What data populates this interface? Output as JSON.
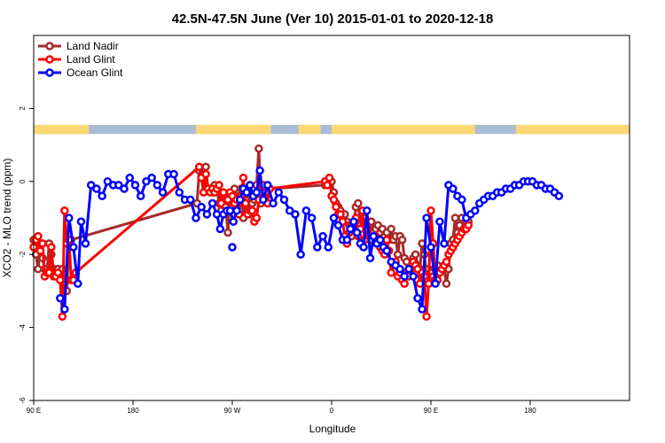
{
  "chart_data": {
    "type": "line",
    "title": "42.5N-47.5N June (Ver 10)   2015-01-01 to 2020-12-18",
    "xlabel": "Longitude",
    "ylabel": "XCO2 - MLO trend (ppm)",
    "xlim": [
      90,
      630
    ],
    "ylim": [
      -6,
      4
    ],
    "x_ticks": [
      {
        "value": 90,
        "label": "90 E"
      },
      {
        "value": 180,
        "label": "180"
      },
      {
        "value": 270,
        "label": "90 W"
      },
      {
        "value": 360,
        "label": "0"
      },
      {
        "value": 450,
        "label": "90 E"
      },
      {
        "value": 540,
        "label": "180"
      }
    ],
    "y_ticks": [
      {
        "value": -6,
        "label": "-6"
      },
      {
        "value": -4,
        "label": "-4"
      },
      {
        "value": -2,
        "label": "-2"
      },
      {
        "value": 0,
        "label": "0"
      },
      {
        "value": 2,
        "label": "2"
      }
    ],
    "grid": false,
    "legend_position": "top-left",
    "land_mask_strip": {
      "y_range": [
        1.3,
        1.55
      ],
      "land_color": "#fbd874",
      "ocean_color": "#a9bcd6",
      "land_ranges": [
        [
          90,
          140
        ],
        [
          237,
          305
        ],
        [
          330,
          350
        ],
        [
          360,
          490
        ],
        [
          527,
          540
        ],
        [
          540,
          630
        ]
      ]
    },
    "series": [
      {
        "name": "Land Nadir",
        "color": "#a52a2a",
        "x": [
          90,
          92,
          94,
          96,
          98,
          100,
          102,
          104,
          106,
          108,
          110,
          112,
          114,
          116,
          118,
          120,
          122,
          124,
          238,
          240,
          242,
          244,
          246,
          248,
          250,
          252,
          254,
          256,
          258,
          260,
          262,
          264,
          266,
          268,
          270,
          272,
          274,
          276,
          278,
          280,
          282,
          284,
          286,
          288,
          290,
          292,
          294,
          296,
          298,
          300,
          302,
          304,
          354,
          356,
          358,
          360,
          362,
          364,
          366,
          368,
          370,
          372,
          374,
          376,
          378,
          380,
          382,
          384,
          386,
          388,
          390,
          392,
          394,
          396,
          398,
          400,
          402,
          404,
          406,
          408,
          410,
          412,
          414,
          416,
          418,
          420,
          422,
          424,
          426,
          428,
          430,
          432,
          434,
          436,
          438,
          440,
          442,
          444,
          446,
          448,
          450,
          452,
          454,
          456,
          458,
          460,
          462,
          464,
          466,
          468,
          470,
          472,
          474,
          476,
          478,
          480,
          482,
          484
        ],
        "values": [
          -1.6,
          -2.0,
          -2.4,
          -1.7,
          -2.1,
          -2.4,
          -2.5,
          -1.7,
          -2.0,
          -2.4,
          -2.5,
          -2.4,
          -2.5,
          -2.4,
          -2.8,
          -3.0,
          -1.7,
          -1.6,
          -0.6,
          0.3,
          0.1,
          0.1,
          0.4,
          -0.2,
          -0.2,
          -0.3,
          -0.1,
          -0.2,
          -0.6,
          -0.8,
          -0.5,
          -0.6,
          -1.4,
          -0.4,
          -0.3,
          -0.2,
          -0.7,
          -0.4,
          -0.2,
          -1.0,
          -0.5,
          -0.2,
          -0.9,
          -0.6,
          -0.5,
          -0.1,
          0.9,
          -0.6,
          -0.4,
          -0.2,
          -0.3,
          -0.2,
          -0.1,
          0.0,
          0.1,
          0.0,
          -0.3,
          -0.6,
          -0.7,
          -0.8,
          -1.0,
          -0.9,
          -1.1,
          -1.2,
          -1.5,
          -1.3,
          -0.7,
          -0.6,
          -1.2,
          -0.9,
          -1.0,
          -1.1,
          -1.3,
          -1.1,
          -1.4,
          -1.3,
          -1.2,
          -1.4,
          -1.3,
          -1.5,
          -1.4,
          -1.6,
          -1.3,
          -1.6,
          -1.5,
          -2.0,
          -1.5,
          -1.6,
          -2.1,
          -2.2,
          -2.4,
          -2.4,
          -2.1,
          -2.0,
          -2.3,
          -2.4,
          -1.7,
          -2.0,
          -2.5,
          -2.4,
          -2.5,
          -2.6,
          -2.4,
          -2.3,
          -2.5,
          -2.4,
          -2.4,
          -2.8,
          -2.4,
          -1.7,
          -1.6,
          -1.0,
          -1.4,
          -1.2,
          -1.0,
          -1.3,
          -1.2,
          -1.1
        ]
      },
      {
        "name": "Land Glint",
        "color": "#ff0000",
        "x": [
          90,
          92,
          94,
          96,
          98,
          100,
          102,
          104,
          106,
          108,
          110,
          112,
          114,
          116,
          118,
          120,
          122,
          124,
          126,
          128,
          240,
          242,
          244,
          246,
          248,
          250,
          252,
          254,
          256,
          258,
          260,
          262,
          264,
          266,
          268,
          270,
          272,
          274,
          276,
          278,
          280,
          282,
          284,
          286,
          288,
          290,
          292,
          294,
          296,
          298,
          300,
          302,
          304,
          354,
          356,
          358,
          360,
          362,
          364,
          366,
          368,
          370,
          372,
          374,
          376,
          378,
          380,
          382,
          384,
          386,
          388,
          390,
          392,
          394,
          396,
          398,
          400,
          402,
          404,
          406,
          408,
          410,
          412,
          414,
          416,
          418,
          420,
          422,
          424,
          426,
          428,
          430,
          432,
          434,
          436,
          438,
          440,
          442,
          444,
          446,
          448,
          450,
          452,
          454,
          456,
          458,
          460,
          462,
          464,
          466,
          468,
          470,
          472,
          474,
          476,
          478,
          480,
          482,
          484
        ],
        "values": [
          -1.8,
          -1.6,
          -1.5,
          -1.9,
          -1.7,
          -2.6,
          -2.5,
          -2.5,
          -1.8,
          -2.6,
          -2.6,
          -2.5,
          -2.7,
          -3.7,
          -0.8,
          -1.7,
          -1.6,
          -2.7,
          -2.7,
          -2.5,
          0.4,
          0.1,
          -0.3,
          0.2,
          -0.2,
          -0.3,
          -0.2,
          -0.3,
          -0.2,
          -0.1,
          -0.6,
          -0.3,
          -0.7,
          -0.5,
          -0.3,
          -0.4,
          -0.6,
          -0.5,
          -0.9,
          -0.4,
          0.1,
          -0.6,
          -0.9,
          -0.8,
          -0.8,
          -1.1,
          -1.0,
          -0.5,
          -0.3,
          -0.1,
          -0.3,
          -0.6,
          -0.2,
          0.0,
          -0.1,
          0.1,
          -0.4,
          -0.5,
          -0.7,
          -0.9,
          -0.9,
          -1.1,
          -1.5,
          -1.7,
          -1.4,
          -1.2,
          -1.2,
          -1.0,
          -1.5,
          -1.3,
          -0.8,
          -1.6,
          -1.3,
          -1.5,
          -1.6,
          -1.5,
          -1.5,
          -1.7,
          -1.8,
          -1.9,
          -2.0,
          -1.6,
          -1.9,
          -2.5,
          -2.3,
          -2.2,
          -2.6,
          -2.5,
          -2.7,
          -2.8,
          -2.5,
          -2.6,
          -2.4,
          -2.2,
          -2.3,
          -2.4,
          -2.8,
          -2.5,
          -2.6,
          -3.7,
          -2.8,
          -0.8,
          -1.7,
          -2.7,
          -2.7,
          -2.5,
          -2.4,
          -2.3,
          -2.2,
          -2.0,
          -1.9,
          -1.8,
          -1.7,
          -1.6,
          -1.5,
          -1.4,
          -1.3,
          -1.3,
          -1.2
        ]
      },
      {
        "name": "Ocean Glint",
        "color": "#0000ff",
        "x": [
          114,
          118,
          122,
          126,
          130,
          133,
          137,
          142,
          147,
          152,
          157,
          162,
          167,
          172,
          177,
          182,
          187,
          192,
          197,
          202,
          207,
          212,
          217,
          222,
          227,
          232,
          237,
          242,
          247,
          252,
          256,
          259,
          262,
          265,
          268,
          271,
          274,
          277,
          280,
          283,
          286,
          289,
          292,
          295,
          298,
          302,
          307,
          312,
          317,
          322,
          327,
          332,
          337,
          342,
          347,
          352,
          357,
          362,
          366,
          370,
          374,
          377,
          380,
          383,
          386,
          389,
          392,
          395,
          398,
          401,
          404,
          407,
          410,
          414,
          418,
          422,
          426,
          430,
          434,
          438,
          442,
          446,
          450,
          454,
          458,
          462,
          466,
          470,
          474,
          478,
          482,
          486,
          490,
          494,
          498,
          502,
          506,
          510,
          514,
          518,
          522,
          526,
          530,
          534,
          538,
          542,
          546,
          550,
          554,
          558,
          562,
          566
        ],
        "values": [
          -3.2,
          -3.5,
          -1.0,
          -1.8,
          -2.8,
          -1.1,
          -1.7,
          -0.1,
          -0.2,
          -0.4,
          0.0,
          -0.1,
          -0.1,
          -0.2,
          0.1,
          -0.1,
          -0.4,
          0.0,
          0.1,
          -0.1,
          -0.3,
          0.2,
          0.2,
          -0.3,
          -0.5,
          -0.5,
          -1.0,
          -0.7,
          -0.9,
          -0.6,
          -0.9,
          -1.3,
          -0.9,
          -0.8,
          -0.8,
          -1.1,
          -0.8,
          -0.5,
          -0.2,
          -0.3,
          -0.1,
          -0.4,
          -0.3,
          0.3,
          -0.5,
          -0.1,
          -0.6,
          -0.3,
          -0.5,
          -0.8,
          -0.9,
          -2.0,
          -0.8,
          -1.0,
          -1.8,
          -1.5,
          -1.8,
          -1.0,
          -1.2,
          -1.6,
          -1.6,
          -1.3,
          -1.1,
          -1.4,
          -1.7,
          -1.8,
          -0.8,
          -2.1,
          -1.5,
          -1.7,
          -1.6,
          -1.8,
          -1.9,
          -2.2,
          -2.3,
          -2.4,
          -2.6,
          -2.4,
          -2.6,
          -3.2,
          -3.5,
          -1.0,
          -1.8,
          -2.8,
          -1.1,
          -1.7,
          -0.1,
          -0.2,
          -0.4,
          -0.5,
          -1.0,
          -0.9,
          -0.8,
          -0.6,
          -0.5,
          -0.4,
          -0.4,
          -0.3,
          -0.3,
          -0.2,
          -0.2,
          -0.1,
          -0.1,
          0.0,
          0.0,
          0.0,
          -0.1,
          -0.1,
          -0.2,
          -0.2,
          -0.3,
          -0.4
        ],
        "extra_point": {
          "x": 270,
          "value": -1.8
        }
      }
    ]
  }
}
